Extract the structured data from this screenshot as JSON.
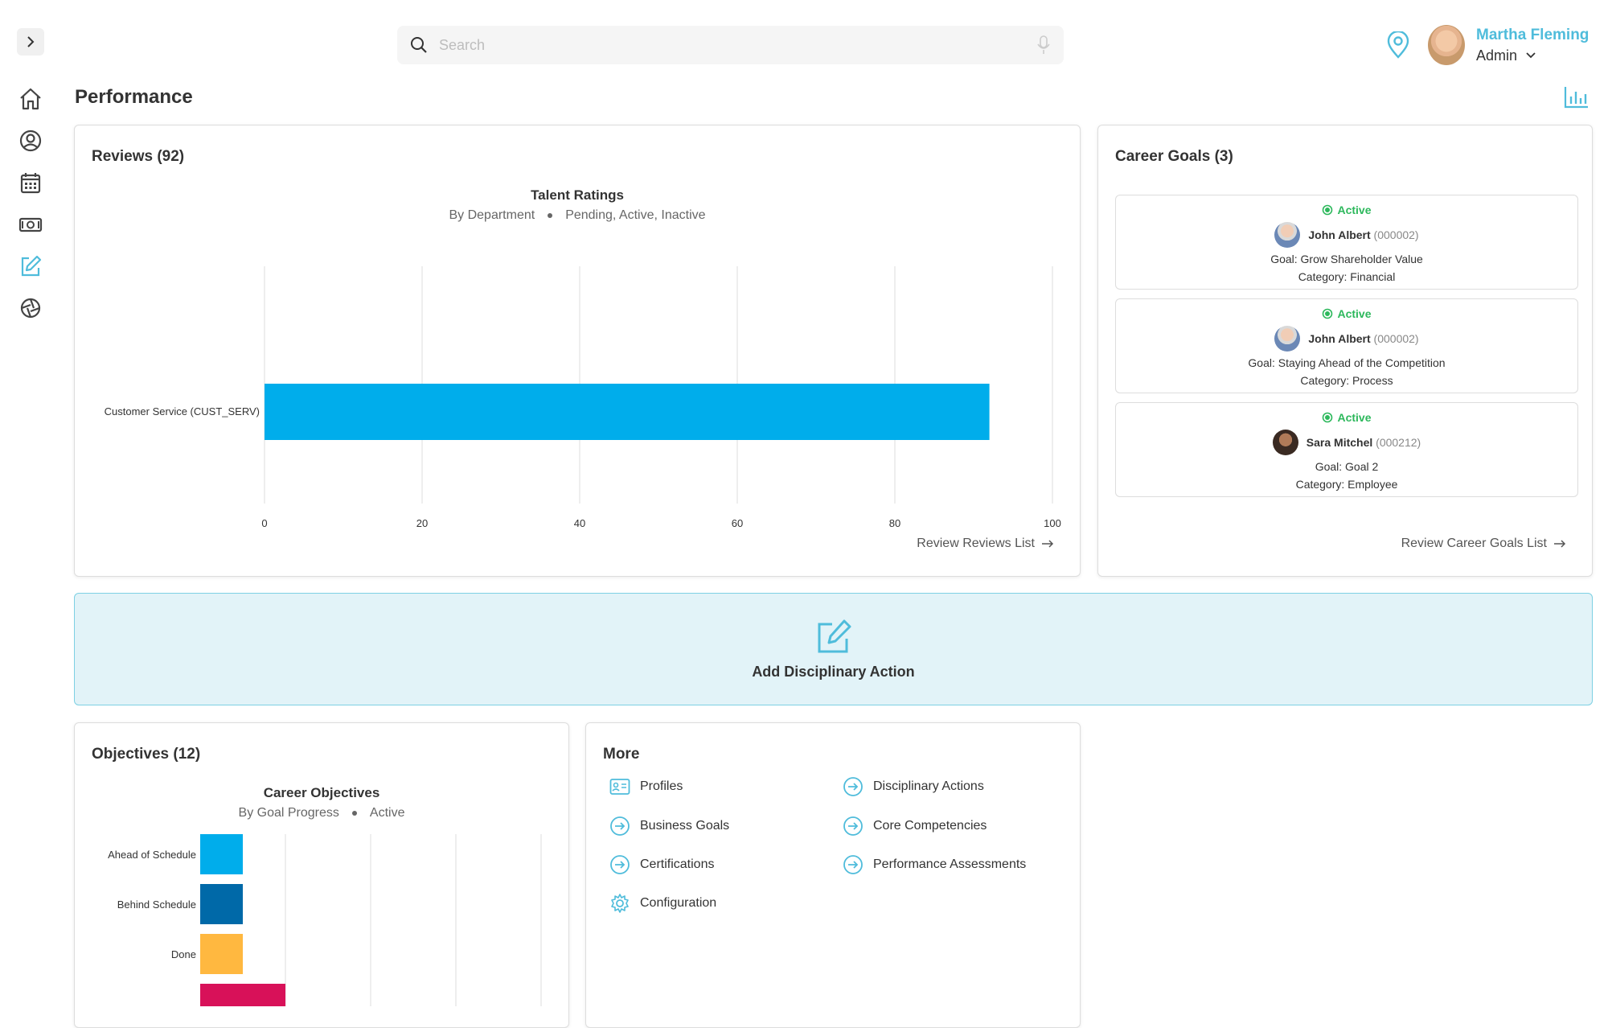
{
  "header": {
    "search_placeholder": "Search",
    "user_name": "Martha Fleming",
    "user_role": "Admin",
    "page_title": "Performance"
  },
  "sidebar": {
    "items": [
      "expand",
      "home",
      "profile",
      "calendar",
      "money",
      "edit",
      "refresh"
    ]
  },
  "reviews": {
    "title": "Reviews (92)",
    "chart_title": "Talent Ratings",
    "chart_sub_a": "By Department",
    "chart_sub_b": "Pending, Active, Inactive",
    "link": "Review Reviews List"
  },
  "career_goals": {
    "title": "Career Goals (3)",
    "items": [
      {
        "status": "Active",
        "name": "John Albert",
        "id": "(000002)",
        "goal": "Goal: Grow Shareholder Value",
        "category": "Category: Financial"
      },
      {
        "status": "Active",
        "name": "John Albert",
        "id": "(000002)",
        "goal": "Goal: Staying Ahead of the Competition",
        "category": "Category: Process"
      },
      {
        "status": "Active",
        "name": "Sara Mitchel",
        "id": "(000212)",
        "goal": "Goal: Goal 2",
        "category": "Category: Employee"
      }
    ],
    "link": "Review Career Goals List"
  },
  "banner": {
    "label": "Add Disciplinary Action"
  },
  "objectives": {
    "title": "Objectives (12)",
    "chart_title": "Career Objectives",
    "chart_sub_a": "By Goal Progress",
    "chart_sub_b": "Active"
  },
  "more": {
    "title": "More",
    "items": [
      {
        "label": "Profiles",
        "icon": "id-card-icon"
      },
      {
        "label": "Business Goals",
        "icon": "arrow-circle-icon"
      },
      {
        "label": "Certifications",
        "icon": "arrow-circle-icon"
      },
      {
        "label": "Configuration",
        "icon": "gear-icon"
      },
      {
        "label": "Disciplinary Actions",
        "icon": "arrow-circle-icon"
      },
      {
        "label": "Core Competencies",
        "icon": "arrow-circle-icon"
      },
      {
        "label": "Performance Assessments",
        "icon": "arrow-circle-icon"
      }
    ]
  },
  "chart_data": [
    {
      "type": "bar",
      "orientation": "horizontal",
      "title": "Talent Ratings",
      "subtitle": "By Department • Pending, Active, Inactive",
      "categories": [
        "Customer Service (CUST_SERV)"
      ],
      "values": [
        92
      ],
      "xlim": [
        0,
        100
      ],
      "xticks": [
        0,
        20,
        40,
        60,
        80,
        100
      ],
      "colors": [
        "#00adeb"
      ],
      "grid": true
    },
    {
      "type": "bar",
      "orientation": "horizontal",
      "title": "Career Objectives",
      "subtitle": "By Goal Progress • Active",
      "categories": [
        "Ahead of Schedule",
        "Behind Schedule",
        "Done",
        ""
      ],
      "values": [
        1,
        1,
        1,
        2
      ],
      "colors": [
        "#00adeb",
        "#0069a8",
        "#ffb840",
        "#d81159"
      ],
      "grid": true
    }
  ]
}
